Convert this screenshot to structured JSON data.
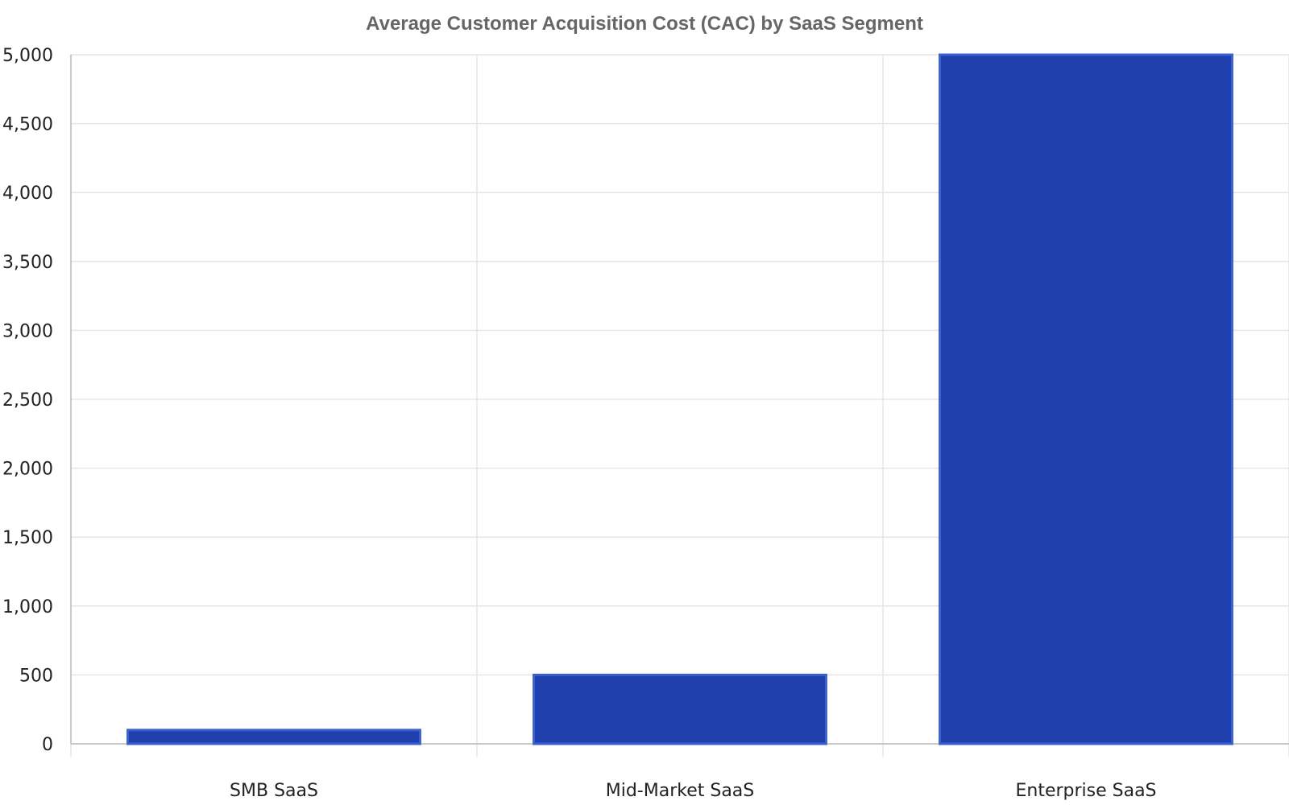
{
  "chart_data": {
    "type": "bar",
    "title": "Average Customer Acquisition Cost (CAC) by SaaS Segment",
    "xlabel": "",
    "ylabel": "",
    "categories": [
      "SMB SaaS",
      "Mid-Market SaaS",
      "Enterprise SaaS"
    ],
    "values": [
      100,
      500,
      5000
    ],
    "ylim": [
      0,
      5000
    ],
    "yticks": [
      0,
      500,
      1000,
      1500,
      2000,
      2500,
      3000,
      3500,
      4000,
      4500,
      5000
    ],
    "ytick_labels": [
      "0",
      "500",
      "1,000",
      "1,500",
      "2,000",
      "2,500",
      "3,000",
      "3,500",
      "4,000",
      "4,500",
      "5,000"
    ],
    "grid": true,
    "legend": "none",
    "colors": {
      "bar_fill": "#1f3fad",
      "bar_edge": "#3a5fd0",
      "grid": "#e6e6e6",
      "axis": "#bbbbbb"
    }
  }
}
